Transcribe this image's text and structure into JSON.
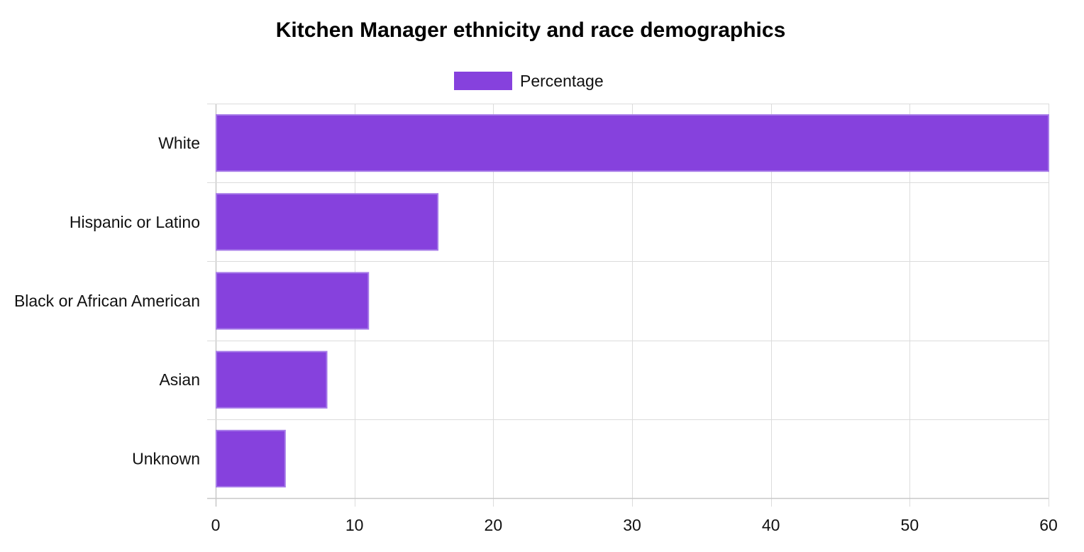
{
  "chart_data": {
    "type": "bar",
    "orientation": "horizontal",
    "title": "Kitchen Manager ethnicity and race demographics",
    "categories": [
      "White",
      "Hispanic or Latino",
      "Black or African American",
      "Asian",
      "Unknown"
    ],
    "series": [
      {
        "name": "Percentage",
        "values": [
          60,
          16,
          11,
          8,
          5
        ],
        "color": "#8641dd"
      }
    ],
    "xlim": [
      0,
      60
    ],
    "x_ticks": [
      0,
      10,
      20,
      30,
      40,
      50,
      60
    ],
    "grid": true,
    "legend_position": "top"
  }
}
